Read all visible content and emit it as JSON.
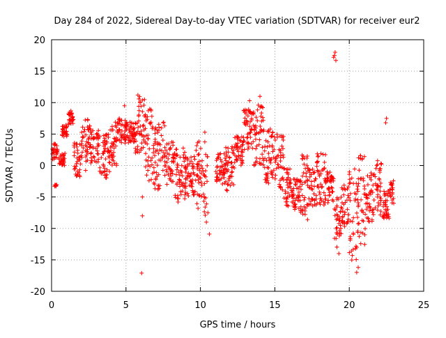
{
  "chart_data": {
    "type": "scatter",
    "title": "Day 284 of 2022, Sidereal Day-to-day VTEC variation (SDTVAR) for receiver eur2",
    "xlabel": "GPS time / hours",
    "ylabel": "SDTVAR / TECUs",
    "xlim": [
      0,
      25
    ],
    "ylim": [
      -20,
      20
    ],
    "xticks": [
      0,
      5,
      10,
      15,
      20,
      25
    ],
    "yticks": [
      -20,
      -15,
      -10,
      -5,
      0,
      5,
      10,
      15,
      20
    ],
    "grid": true,
    "marker": "+",
    "marker_color": "#ff0000",
    "segments": [
      {
        "x0": 0.0,
        "x1": 0.4,
        "ymin": 1,
        "ymax": 3.5
      },
      {
        "x0": 0.2,
        "x1": 0.35,
        "ymin": -3.5,
        "ymax": -3
      },
      {
        "x0": 0.5,
        "x1": 0.9,
        "ymin": 0,
        "ymax": 2
      },
      {
        "x0": 0.7,
        "x1": 1.1,
        "ymin": 4.5,
        "ymax": 6.5
      },
      {
        "x0": 1.1,
        "x1": 1.5,
        "ymin": 6.5,
        "ymax": 8.5
      },
      {
        "x0": 1.5,
        "x1": 2.0,
        "ymin": -2,
        "ymax": 4
      },
      {
        "x0": 2.0,
        "x1": 2.6,
        "ymin": -1,
        "ymax": 7.5
      },
      {
        "x0": 2.6,
        "x1": 3.2,
        "ymin": 0,
        "ymax": 6
      },
      {
        "x0": 3.2,
        "x1": 3.9,
        "ymin": -2,
        "ymax": 5
      },
      {
        "x0": 3.9,
        "x1": 4.4,
        "ymin": 0,
        "ymax": 7
      },
      {
        "x0": 4.4,
        "x1": 5.0,
        "ymin": 3.5,
        "ymax": 7.5
      },
      {
        "x0": 5.0,
        "x1": 5.6,
        "ymin": 3,
        "ymax": 7
      },
      {
        "x0": 5.6,
        "x1": 6.3,
        "ymin": 2,
        "ymax": 11
      },
      {
        "x0": 6.3,
        "x1": 6.9,
        "ymin": -3,
        "ymax": 9
      },
      {
        "x0": 6.9,
        "x1": 7.6,
        "ymin": -4,
        "ymax": 7
      },
      {
        "x0": 7.6,
        "x1": 8.2,
        "ymin": -3,
        "ymax": 4
      },
      {
        "x0": 8.2,
        "x1": 9.0,
        "ymin": -6,
        "ymax": 3
      },
      {
        "x0": 9.0,
        "x1": 9.7,
        "ymin": -5,
        "ymax": 1.5
      },
      {
        "x0": 9.7,
        "x1": 10.2,
        "ymin": -7,
        "ymax": 4
      },
      {
        "x0": 10.2,
        "x1": 10.5,
        "ymin": -8,
        "ymax": 6
      },
      {
        "x0": 11.0,
        "x1": 11.7,
        "ymin": -3,
        "ymax": 2
      },
      {
        "x0": 11.7,
        "x1": 12.3,
        "ymin": -4,
        "ymax": 3
      },
      {
        "x0": 12.3,
        "x1": 12.9,
        "ymin": 0,
        "ymax": 5
      },
      {
        "x0": 12.9,
        "x1": 13.6,
        "ymin": 2,
        "ymax": 9
      },
      {
        "x0": 13.6,
        "x1": 14.3,
        "ymin": 0,
        "ymax": 10.5
      },
      {
        "x0": 14.3,
        "x1": 15.0,
        "ymin": -3,
        "ymax": 6
      },
      {
        "x0": 15.0,
        "x1": 15.6,
        "ymin": -4,
        "ymax": 5
      },
      {
        "x0": 15.6,
        "x1": 16.1,
        "ymin": -6.5,
        "ymax": 0
      },
      {
        "x0": 16.1,
        "x1": 16.7,
        "ymin": -7,
        "ymax": -2
      },
      {
        "x0": 16.7,
        "x1": 17.2,
        "ymin": -8,
        "ymax": 2
      },
      {
        "x0": 17.2,
        "x1": 17.8,
        "ymin": -6.5,
        "ymax": 0
      },
      {
        "x0": 17.8,
        "x1": 18.4,
        "ymin": -7,
        "ymax": 2
      },
      {
        "x0": 18.4,
        "x1": 19.0,
        "ymin": -6,
        "ymax": -1
      },
      {
        "x0": 19.0,
        "x1": 19.5,
        "ymin": -13,
        "ymax": -5
      },
      {
        "x0": 19.5,
        "x1": 20.0,
        "ymin": -10,
        "ymax": -3
      },
      {
        "x0": 20.0,
        "x1": 20.6,
        "ymin": -16,
        "ymax": 0
      },
      {
        "x0": 20.6,
        "x1": 21.1,
        "ymin": -13,
        "ymax": 2
      },
      {
        "x0": 21.1,
        "x1": 21.6,
        "ymin": -9,
        "ymax": -1
      },
      {
        "x0": 21.6,
        "x1": 22.2,
        "ymin": -8,
        "ymax": 1
      },
      {
        "x0": 22.2,
        "x1": 22.7,
        "ymin": -8.5,
        "ymax": -4
      },
      {
        "x0": 22.7,
        "x1": 23.0,
        "ymin": -6,
        "ymax": -2
      }
    ],
    "outliers": [
      {
        "x": 5.8,
        "y": 11.2
      },
      {
        "x": 6.05,
        "y": -17.1
      },
      {
        "x": 6.1,
        "y": -5.0
      },
      {
        "x": 6.1,
        "y": -8.0
      },
      {
        "x": 4.9,
        "y": 9.5
      },
      {
        "x": 1.3,
        "y": 8.7
      },
      {
        "x": 10.6,
        "y": -10.9
      },
      {
        "x": 10.5,
        "y": -7.5
      },
      {
        "x": 10.4,
        "y": -9.0
      },
      {
        "x": 19.0,
        "y": 17.5
      },
      {
        "x": 19.05,
        "y": 18.0
      },
      {
        "x": 19.1,
        "y": 16.7
      },
      {
        "x": 18.95,
        "y": 17.2
      },
      {
        "x": 20.5,
        "y": -17.0
      },
      {
        "x": 20.6,
        "y": -16.2
      },
      {
        "x": 22.5,
        "y": 7.5
      },
      {
        "x": 22.45,
        "y": 6.8
      },
      {
        "x": 17.2,
        "y": -8.6
      },
      {
        "x": 12.3,
        "y": 0.5
      },
      {
        "x": 19.3,
        "y": -14.0
      },
      {
        "x": 8.5,
        "y": -5.8
      },
      {
        "x": 14.0,
        "y": 11.0
      },
      {
        "x": 13.3,
        "y": 10.3
      },
      {
        "x": 11.8,
        "y": -4.0
      }
    ]
  }
}
